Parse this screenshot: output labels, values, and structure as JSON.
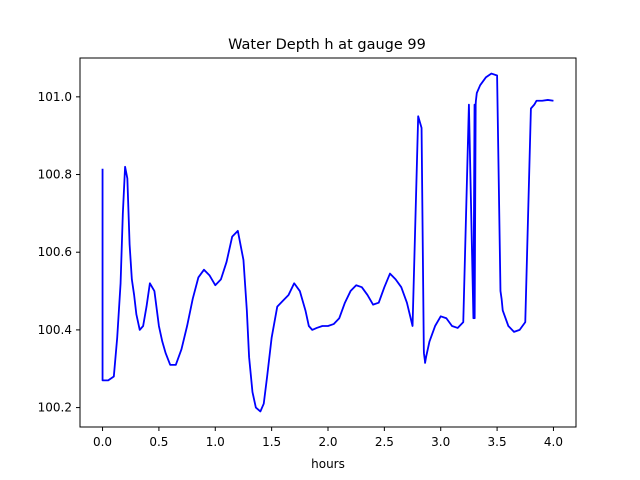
{
  "chart_data": {
    "type": "line",
    "title": "Water Depth h at gauge 99",
    "xlabel": "hours",
    "ylabel": "",
    "xlim": [
      -0.2,
      4.2
    ],
    "ylim": [
      100.15,
      101.1
    ],
    "xticks": [
      0.0,
      0.5,
      1.0,
      1.5,
      2.0,
      2.5,
      3.0,
      3.5,
      4.0
    ],
    "xtick_labels": [
      "0.0",
      "0.5",
      "1.0",
      "1.5",
      "2.0",
      "2.5",
      "3.0",
      "3.5",
      "4.0"
    ],
    "yticks": [
      100.2,
      100.4,
      100.6,
      100.8,
      101.0
    ],
    "ytick_labels": [
      "100.2",
      "100.4",
      "100.6",
      "100.8",
      "101.0"
    ],
    "grid": false,
    "legend": "none",
    "series": [
      {
        "color": "#0000ff",
        "x": [
          0.0,
          0.0,
          0.05,
          0.1,
          0.13,
          0.16,
          0.18,
          0.2,
          0.22,
          0.24,
          0.26,
          0.28,
          0.3,
          0.33,
          0.36,
          0.39,
          0.42,
          0.46,
          0.5,
          0.53,
          0.56,
          0.6,
          0.65,
          0.7,
          0.75,
          0.8,
          0.85,
          0.9,
          0.95,
          1.0,
          1.05,
          1.1,
          1.15,
          1.2,
          1.25,
          1.28,
          1.3,
          1.33,
          1.36,
          1.4,
          1.43,
          1.46,
          1.5,
          1.55,
          1.6,
          1.65,
          1.7,
          1.75,
          1.8,
          1.83,
          1.86,
          1.9,
          1.95,
          2.0,
          2.05,
          2.1,
          2.15,
          2.2,
          2.25,
          2.3,
          2.35,
          2.4,
          2.45,
          2.5,
          2.55,
          2.6,
          2.65,
          2.7,
          2.75,
          2.8,
          2.83,
          2.85,
          2.851,
          2.86,
          2.861,
          2.87,
          2.9,
          2.95,
          3.0,
          3.05,
          3.1,
          3.15,
          3.2,
          3.25,
          3.29,
          3.3,
          3.301,
          3.31,
          3.312,
          3.32,
          3.35,
          3.4,
          3.45,
          3.5,
          3.53,
          3.54,
          3.55,
          3.6,
          3.65,
          3.7,
          3.75,
          3.8,
          3.83,
          3.84,
          3.85,
          3.9,
          3.95,
          4.0
        ],
        "y": [
          100.815,
          100.27,
          100.27,
          100.28,
          100.38,
          100.52,
          100.7,
          100.82,
          100.79,
          100.62,
          100.53,
          100.49,
          100.44,
          100.4,
          100.41,
          100.46,
          100.52,
          100.5,
          100.41,
          100.37,
          100.34,
          100.31,
          100.31,
          100.35,
          100.41,
          100.48,
          100.535,
          100.555,
          100.54,
          100.515,
          100.53,
          100.575,
          100.64,
          100.655,
          100.58,
          100.45,
          100.33,
          100.24,
          100.2,
          100.19,
          100.21,
          100.28,
          100.38,
          100.46,
          100.475,
          100.49,
          100.52,
          100.5,
          100.45,
          100.41,
          100.4,
          100.405,
          100.41,
          100.41,
          100.415,
          100.43,
          100.47,
          100.5,
          100.515,
          100.51,
          100.49,
          100.465,
          100.47,
          100.51,
          100.545,
          100.53,
          100.51,
          100.47,
          100.41,
          100.95,
          100.92,
          100.35,
          100.34,
          100.32,
          100.315,
          100.33,
          100.37,
          100.41,
          100.435,
          100.43,
          100.41,
          100.405,
          100.42,
          100.98,
          100.43,
          100.98,
          100.43,
          100.98,
          100.99,
          101.01,
          101.03,
          101.05,
          101.06,
          101.055,
          100.5,
          100.48,
          100.45,
          100.41,
          100.395,
          100.4,
          100.42,
          100.97,
          100.98,
          100.985,
          100.99,
          100.99,
          100.992,
          100.99
        ]
      }
    ]
  }
}
